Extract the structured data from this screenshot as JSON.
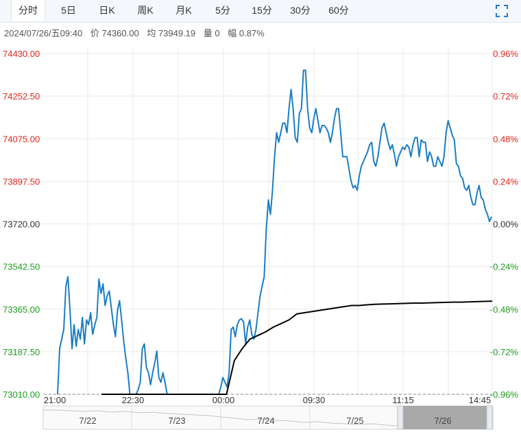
{
  "tabs": [
    {
      "label": "分时",
      "active": true
    },
    {
      "label": "5日"
    },
    {
      "label": "日K"
    },
    {
      "label": "周K"
    },
    {
      "label": "月K"
    },
    {
      "label": "5分"
    },
    {
      "label": "15分"
    },
    {
      "label": "30分"
    },
    {
      "label": "60分"
    }
  ],
  "info": {
    "datetime": "2024/07/26/五09:40",
    "price": "价 74360.00",
    "avg": "均 73949.19",
    "volume": "量 0",
    "change": "幅 0.87%"
  },
  "colors": {
    "price_line": "#1a7dc4",
    "avg_line": "#000000",
    "up": "#e0281f",
    "down": "#1f9e1f",
    "neutral": "#333333",
    "grid": "#e9e9e9"
  },
  "chart_data": {
    "type": "line",
    "base_price": 73720.0,
    "ylim": [
      73010.0,
      74430.0
    ],
    "y_ticks_left": [
      "74430.00",
      "74252.50",
      "74075.00",
      "73897.50",
      "73720.00",
      "73542.50",
      "73365.00",
      "73187.50",
      "73010.00"
    ],
    "y_ticks_right": [
      "0.96%",
      "0.72%",
      "0.48%",
      "0.24%",
      "0.00%",
      "-0.24%",
      "-0.48%",
      "-0.72%",
      "-0.96%"
    ],
    "x_ticks": [
      "21:00",
      "22:30",
      "00:00",
      "09:30",
      "11:15",
      "14:45"
    ],
    "series": [
      {
        "values": [
          73000,
          73200,
          73240,
          73280,
          73460,
          73500,
          73360,
          73200,
          73300,
          73210,
          73280,
          73240,
          73330,
          73220,
          73320,
          73300,
          73350,
          73260,
          73300,
          73330,
          73490,
          73430,
          73470,
          73380,
          73420,
          73440,
          73370,
          73300,
          73250,
          73360,
          73400,
          73320,
          73230,
          73160,
          73100,
          73000,
          73010,
          72980,
          73000,
          73030,
          73060,
          73200,
          73220,
          73120,
          73100,
          73050,
          73100,
          73140,
          73190,
          73080,
          73060,
          73100,
          73060,
          73000,
          73000,
          73010,
          73000,
          73010,
          73000,
          73000,
          73010,
          73000,
          73000,
          73010,
          73000,
          73010,
          73000,
          73000,
          73010,
          73000,
          73000,
          73010,
          73000,
          73000,
          73010,
          73000,
          73000,
          73010,
          73000,
          73040,
          73080,
          73060,
          73040,
          73100,
          73280,
          73290,
          73250,
          73300,
          73320,
          73325,
          73310,
          73220,
          73290,
          73320,
          73260,
          73240,
          73280,
          73350,
          73420,
          73460,
          73500,
          73700,
          73820,
          73760,
          73860,
          74000,
          74100,
          74060,
          74100,
          74140,
          74140,
          74100,
          74200,
          74280,
          74200,
          74080,
          74060,
          74180,
          74200,
          74360,
          74360,
          74200,
          74120,
          74100,
          74160,
          74200,
          74150,
          74100,
          74130,
          74130,
          74120,
          74100,
          74060,
          74100,
          74160,
          74200,
          74200,
          74100,
          74000,
          74000,
          74000,
          73950,
          73900,
          73870,
          73880,
          73860,
          73920,
          73960,
          73980,
          74000,
          74020,
          74050,
          74060,
          73980,
          73960,
          74000,
          74060,
          74120,
          74140,
          74100,
          74060,
          74030,
          74050,
          74010,
          73960,
          74000,
          74020,
          74040,
          74030,
          74050,
          74040,
          74000,
          74050,
          74080,
          74080,
          74000,
          74070,
          74060,
          74060,
          73980,
          74020,
          74000,
          73960,
          73960,
          74000,
          73980,
          73960,
          74000,
          74100,
          74150,
          74120,
          74090,
          74070,
          73970,
          73960,
          73920,
          73910,
          73870,
          73860,
          73880,
          73830,
          73800,
          73800,
          73850,
          73880,
          73830,
          73820,
          73780,
          73760,
          73730,
          73750
        ]
      },
      {
        "values": [
          73000,
          73005,
          73010,
          73010,
          73005,
          73000,
          73010,
          73010,
          73005,
          73000,
          73000,
          73005,
          73010,
          73010,
          73005,
          73000,
          73010,
          73150,
          73200,
          73240,
          73255,
          73270,
          73290,
          73305,
          73320,
          73345,
          73350,
          73355,
          73360,
          73365,
          73370,
          73375,
          73380,
          73380,
          73383,
          73385,
          73386,
          73387,
          73388,
          73389,
          73390,
          73390,
          73391,
          73392,
          73393,
          73394,
          73394,
          73395,
          73396,
          73397,
          73398
        ]
      }
    ]
  },
  "navigator": {
    "labels": [
      "7/22",
      "7/23",
      "7/24",
      "7/25",
      "7/26"
    ]
  }
}
